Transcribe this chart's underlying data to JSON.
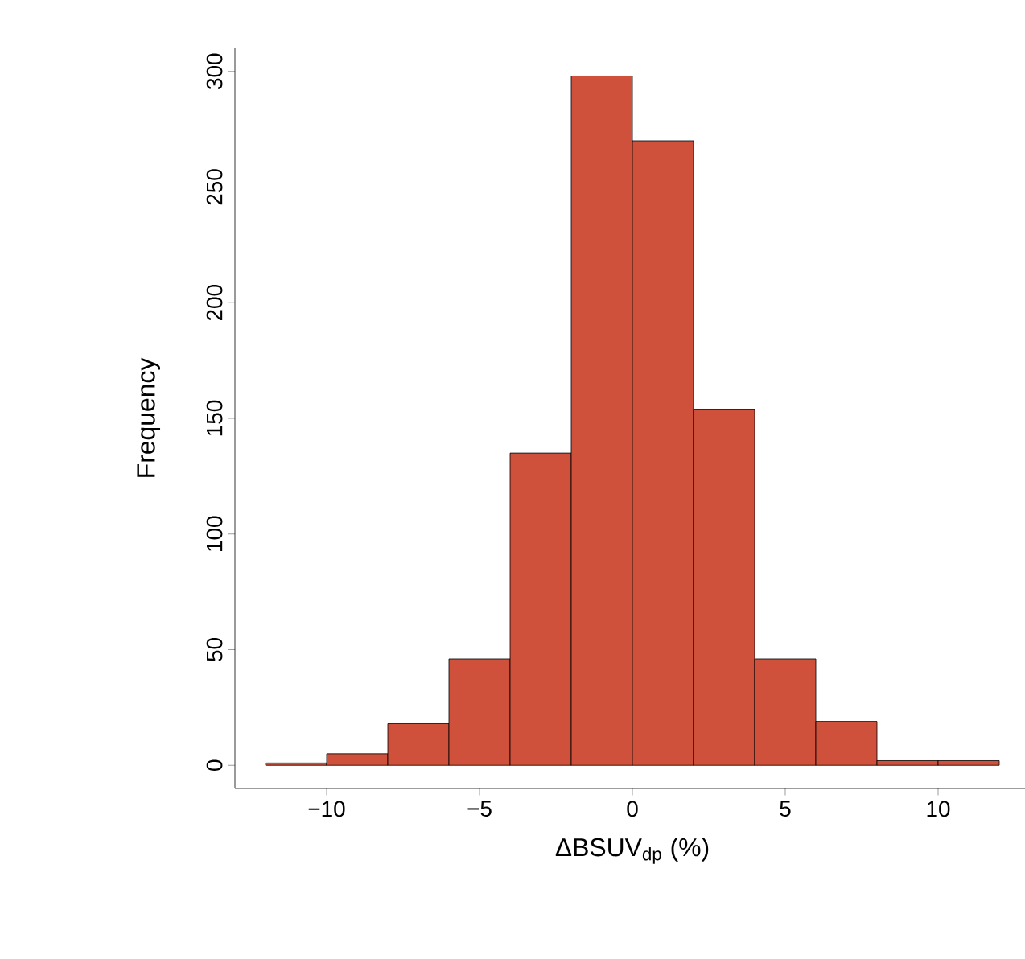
{
  "chart_data": {
    "type": "histogram",
    "xlabel": "ΔBSUV$_{dp}$ (%)",
    "ylabel": "Frequency",
    "bins": [
      -12,
      -10,
      -8,
      -6,
      -4,
      -2,
      0,
      2,
      4,
      6,
      8,
      10,
      12
    ],
    "values": [
      1,
      5,
      18,
      46,
      135,
      298,
      270,
      154,
      46,
      19,
      2,
      2
    ],
    "color": "#cf503b",
    "xlim": [
      -13,
      13
    ],
    "ylim": [
      -10,
      310
    ],
    "xticks": [
      {
        "value": -10,
        "label": "−10"
      },
      {
        "value": -5,
        "label": "−5"
      },
      0,
      5,
      10
    ],
    "yticks": [
      0,
      50,
      100,
      150,
      200,
      250,
      300
    ],
    "grid": false
  }
}
